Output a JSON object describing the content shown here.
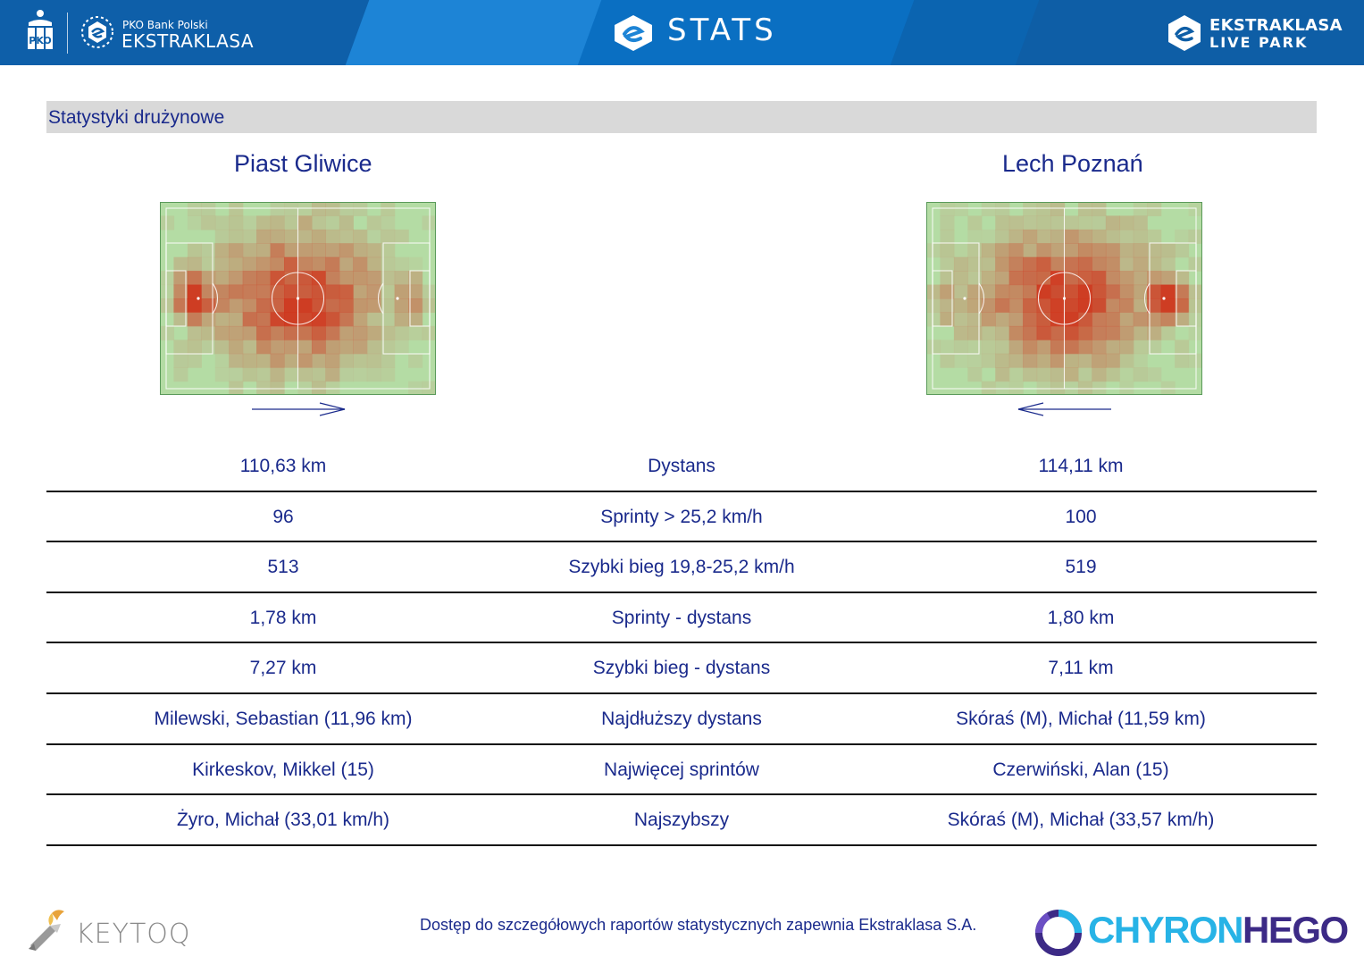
{
  "header": {
    "left_logo_small": "PKO Bank Polski",
    "left_logo_big": "EKSTRAKLASA",
    "center_title": "STATS",
    "right_logo_top": "EKSTRAKLASA",
    "right_logo_bottom": "LIVE PARK",
    "brand_color": "#0a6fc2"
  },
  "section": {
    "title": "Statystyki drużynowe"
  },
  "teams": {
    "home": {
      "name": "Piast Gliwice",
      "attack_direction": "right"
    },
    "away": {
      "name": "Lech Poznań",
      "attack_direction": "left"
    }
  },
  "stats_rows": [
    {
      "label": "Dystans",
      "home": "110,63 km",
      "away": "114,11 km"
    },
    {
      "label": "Sprinty > 25,2 km/h",
      "home": "96",
      "away": "100"
    },
    {
      "label": "Szybki bieg 19,8-25,2 km/h",
      "home": "513",
      "away": "519"
    },
    {
      "label": "Sprinty - dystans",
      "home": "1,78 km",
      "away": "1,80 km"
    },
    {
      "label": "Szybki bieg - dystans",
      "home": "7,27 km",
      "away": "7,11 km"
    },
    {
      "label": "Najdłuższy dystans",
      "home": "Milewski, Sebastian (11,96 km)",
      "away": "Skóraś (M), Michał (11,59 km)"
    },
    {
      "label": "Najwięcej sprintów",
      "home": "Kirkeskov, Mikkel (15)",
      "away": "Czerwiński, Alan (15)"
    },
    {
      "label": "Najszybszy",
      "home": "Żyro, Michał (33,01 km/h)",
      "away": "Skóraś (M), Michał (33,57 km/h)"
    }
  ],
  "footer": {
    "left_brand": "KEYTOQ",
    "note": "Dostęp do szczegółowych raportów statystycznych zapewnia Ekstraklasa S.A.",
    "right_brand_part1": "CHYRON",
    "right_brand_part2": "HEGO"
  },
  "icons": [
    "pko-logo-icon",
    "ekstraklasa-logo-icon",
    "stats-logo-icon",
    "live-park-logo-icon",
    "keytoq-logo-icon",
    "chyronhego-logo-icon",
    "arrow-right-icon",
    "arrow-left-icon"
  ],
  "colors": {
    "text_primary": "#1a2a8c",
    "heat_low": "#b9d9a8",
    "heat_high": "#d0341c",
    "pitch_base": "#b4dca4"
  }
}
